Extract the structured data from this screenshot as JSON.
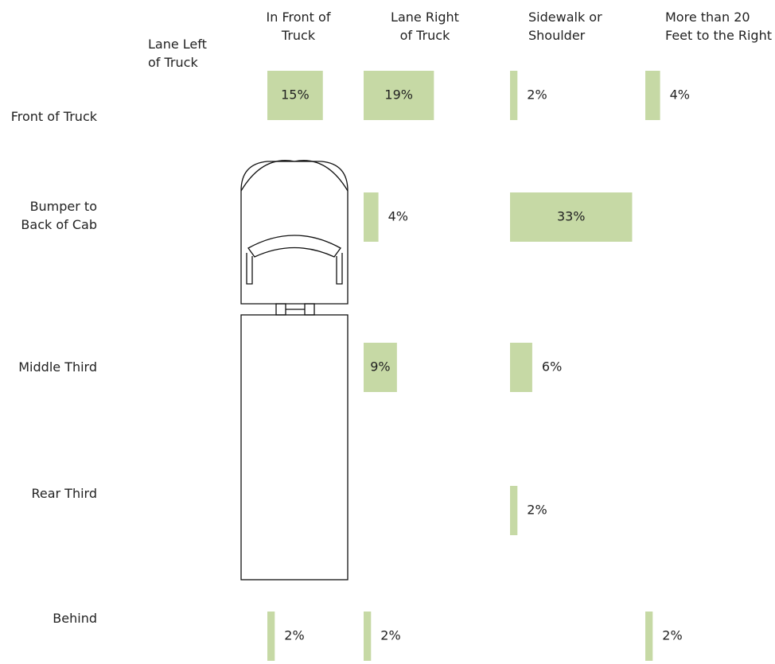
{
  "chart_data": {
    "type": "bar",
    "categories": [
      "Front of Truck",
      "Bumper to Back of Cab",
      "Middle Third",
      "Rear Third",
      "Behind"
    ],
    "color": "#c6d9a5",
    "series": [
      {
        "name": "Lane Left of Truck",
        "values": [
          null,
          null,
          null,
          null,
          null
        ],
        "value_labels": [
          null,
          null,
          null,
          null,
          null
        ]
      },
      {
        "name": "In Front of Truck",
        "values": [
          15,
          null,
          null,
          null,
          2
        ],
        "value_labels": [
          "15%",
          null,
          null,
          null,
          "2%"
        ]
      },
      {
        "name": "Lane Right of Truck",
        "values": [
          19,
          4,
          9,
          null,
          2
        ],
        "value_labels": [
          "19%",
          "4%",
          "9%",
          null,
          "2%"
        ]
      },
      {
        "name": "Sidewalk or Shoulder",
        "values": [
          2,
          33,
          6,
          2,
          null
        ],
        "value_labels": [
          "2%",
          "33%",
          "6%",
          "2%",
          null
        ]
      },
      {
        "name": "More than 20 Feet to the Right",
        "values": [
          4,
          null,
          null,
          null,
          2
        ],
        "value_labels": [
          "4%",
          null,
          null,
          null,
          "2%"
        ]
      }
    ]
  }
}
